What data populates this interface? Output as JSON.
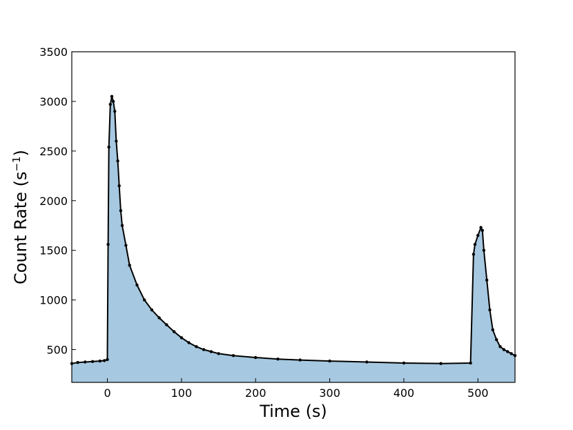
{
  "chart_data": {
    "type": "area",
    "xlabel": "Time (s)",
    "ylabel": "Count Rate (s",
    "ylabel_sup": "−1",
    "ylabel_close": ")",
    "xlim": [
      -48,
      550
    ],
    "ylim": [
      170,
      3500
    ],
    "xticks": [
      0,
      100,
      200,
      300,
      400,
      500
    ],
    "yticks": [
      500,
      1000,
      1500,
      2000,
      2500,
      3000,
      3500
    ],
    "fill_color": "#a6c8e0",
    "line_color": "#000000",
    "grid": false,
    "series": [
      {
        "x": [
          -48,
          -40,
          -30,
          -20,
          -10,
          -4,
          0,
          1,
          2,
          4,
          6,
          8,
          10,
          12,
          14,
          16,
          18,
          20,
          25,
          30,
          40,
          50,
          60,
          70,
          80,
          90,
          100,
          110,
          120,
          130,
          140,
          150,
          170,
          200,
          230,
          260,
          300,
          350,
          400,
          450,
          490,
          494,
          496,
          500,
          504,
          506,
          508,
          512,
          516,
          520,
          525,
          530,
          535,
          540,
          545,
          550
        ],
        "y": [
          360,
          370,
          375,
          380,
          385,
          390,
          400,
          1560,
          2540,
          2970,
          3050,
          3000,
          2900,
          2600,
          2400,
          2150,
          1900,
          1750,
          1550,
          1350,
          1150,
          1000,
          900,
          820,
          750,
          680,
          620,
          570,
          530,
          500,
          480,
          460,
          440,
          420,
          405,
          395,
          385,
          375,
          365,
          360,
          365,
          1460,
          1560,
          1650,
          1730,
          1700,
          1500,
          1200,
          900,
          700,
          600,
          530,
          500,
          480,
          460,
          440
        ]
      }
    ]
  }
}
